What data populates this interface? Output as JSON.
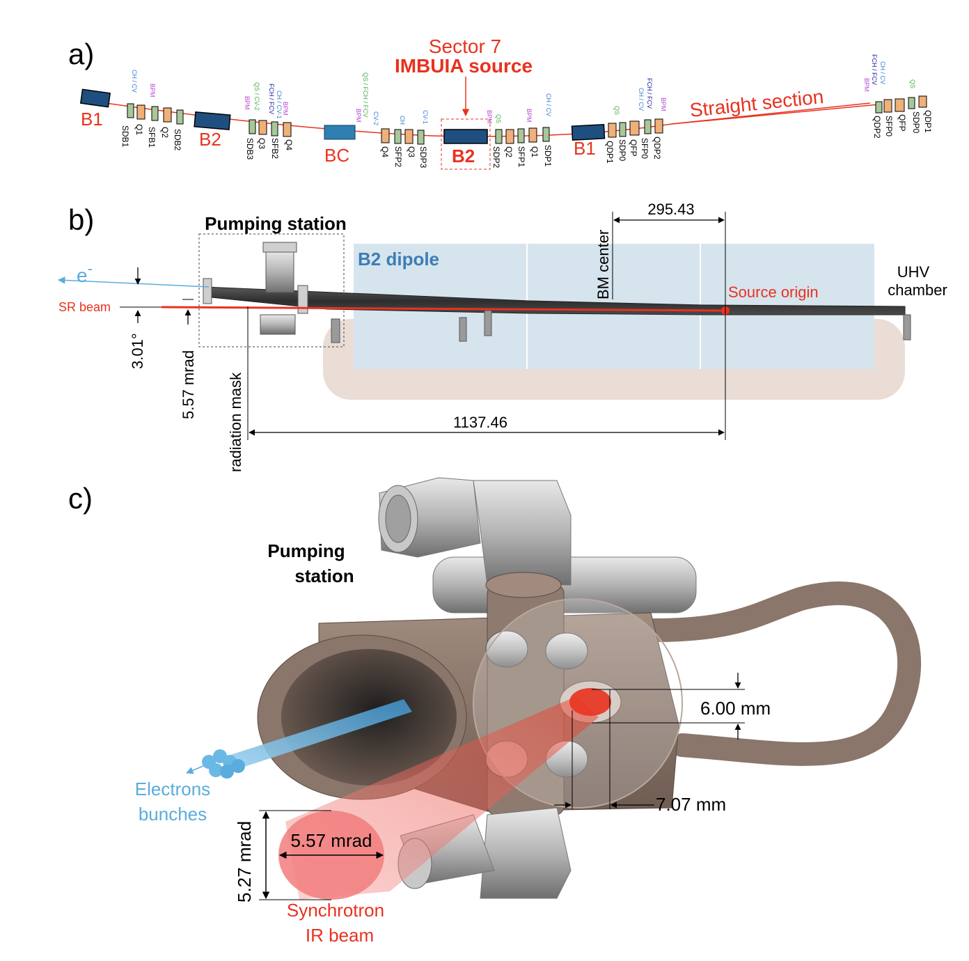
{
  "colors": {
    "accent_red": "#e8321f",
    "label_blue": "#5aacdc",
    "dipole_blue": "#d6e4ee",
    "dipole_text": "#3d7db3",
    "shadow_beige": "#e9ddd6",
    "steel": "#b8b8b8",
    "copper": "#8a766a",
    "magnet_green": "#a8c79a",
    "magnet_orange": "#f0b07a",
    "dipole_dark": "#1f4f80"
  },
  "panel_a": {
    "label": "a)",
    "sector_title": "Sector 7",
    "source_title": "IMBUIA source",
    "straight_section": "Straight section",
    "dipoles": [
      "B1",
      "B2",
      "BC",
      "B2",
      "B1"
    ],
    "element_labels": [
      "SDB1",
      "Q1",
      "SFB1",
      "Q2",
      "SDB2",
      "SDB3",
      "Q3",
      "SFB2",
      "Q4",
      "Q4",
      "SFP2",
      "Q3",
      "SDP3",
      "SDP2",
      "Q2",
      "SFP1",
      "Q1",
      "SDP1",
      "QDP1",
      "SDP0",
      "QFP",
      "SFP0",
      "QDP2",
      "QDP2",
      "SFP0",
      "QFP",
      "SDP0",
      "QDP1"
    ],
    "corrector_labels": {
      "ch_cv": "CH / CV",
      "bpm": "BPM",
      "qs": "QS",
      "qs_cv2": "QS / CV-2",
      "ch_cv1": "CH / CV-1",
      "fch_fcv": "FCH / FCV",
      "qs_fch": "QS / FCH / FCV",
      "cv2": "CV-2",
      "ch": "CH",
      "cv1": "CV-1"
    }
  },
  "panel_b": {
    "label": "b)",
    "pumping_station": "Pumping station",
    "dipole_label": "B2 dipole",
    "electron": "e",
    "electron_sup": "-",
    "sr_beam": "SR beam",
    "angle_deg": "3.01°",
    "angle_mrad": "5.57 mrad",
    "radiation_mask": "radiation mask",
    "bm_center": "BM center",
    "source_origin": "Source origin",
    "uhv_line1": "UHV",
    "uhv_line2": "chamber",
    "dim_top": "295.43",
    "dim_bottom": "1137.46"
  },
  "panel_c": {
    "label": "c)",
    "pumping_line1": "Pumping",
    "pumping_line2": "station",
    "aperture_v": "6.00 mm",
    "aperture_h": "7.07 mm",
    "electrons_line1": "Electrons",
    "electrons_line2": "bunches",
    "beam_h": "5.57 mrad",
    "beam_v": "5.27 mrad",
    "sync_line1": "Synchrotron",
    "sync_line2": "IR beam"
  }
}
